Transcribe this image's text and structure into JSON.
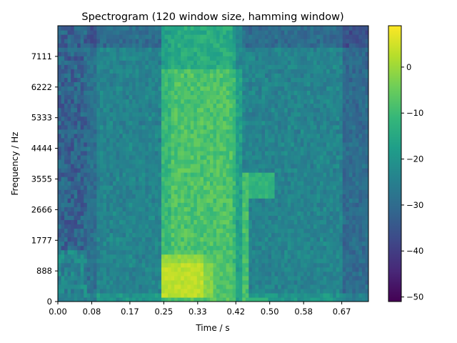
{
  "chart_data": {
    "type": "heatmap",
    "title": "Spectrogram (120 window size, hamming window)",
    "xlabel": "Time / s",
    "ylabel": "Frequency / Hz",
    "x_ticks": [
      "0.00",
      "0.08",
      "0.17",
      "0.25",
      "0.33",
      "0.42",
      "0.50",
      "0.58",
      "0.67"
    ],
    "y_ticks": [
      "0",
      "888",
      "1777",
      "2666",
      "3555",
      "4444",
      "5333",
      "6222",
      "7111"
    ],
    "xlim": [
      0.0,
      0.733
    ],
    "ylim": [
      0,
      8000
    ],
    "colorbar": {
      "ticks": [
        "0",
        "−10",
        "−20",
        "−30",
        "−40",
        "−50"
      ],
      "tick_values": [
        0,
        -10,
        -20,
        -30,
        -40,
        -50
      ],
      "range": [
        -51,
        9
      ],
      "colormap": "viridis"
    },
    "regions_db": [
      {
        "desc": "background noise floor",
        "value": -24
      },
      {
        "desc": "low-frequency burst 0.25-0.36 s, 200-1300 Hz",
        "value": 5
      },
      {
        "desc": "broadband segment 0.25-0.44 s",
        "value": -8
      },
      {
        "desc": "onset vertical line near 0.44 s",
        "value": -12
      },
      {
        "desc": "dark edges below 0.07 s",
        "value": -38
      }
    ]
  },
  "colors": {
    "viridis": [
      "#440154",
      "#482878",
      "#3e4989",
      "#31688e",
      "#26828e",
      "#1f9e89",
      "#35b779",
      "#6ece58",
      "#b5de2b",
      "#fde725"
    ]
  }
}
